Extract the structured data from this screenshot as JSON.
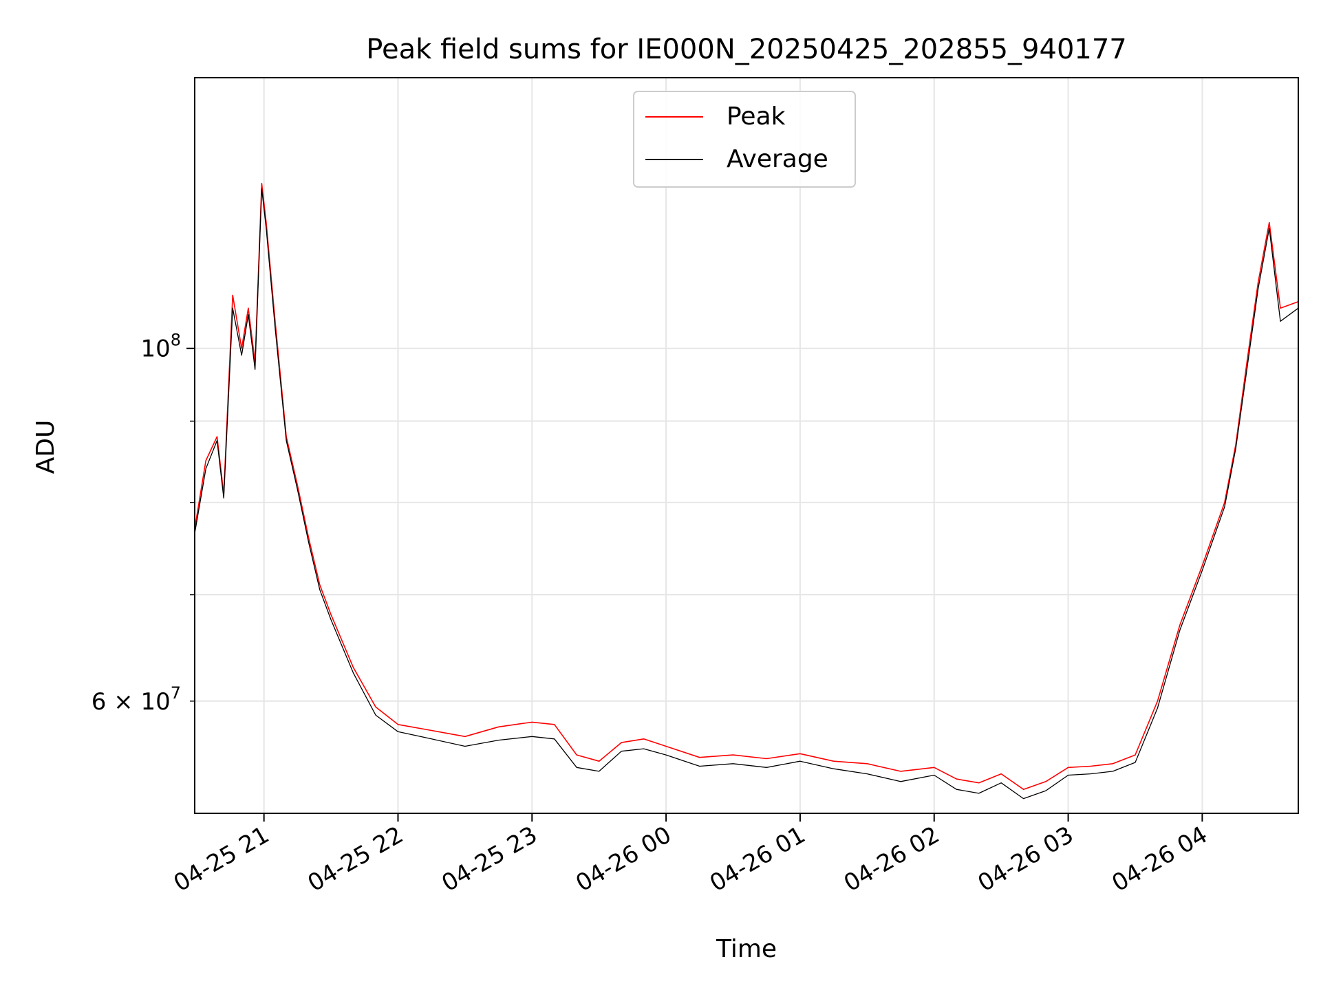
{
  "chart_data": {
    "type": "line",
    "title": "Peak field sums for IE000N_20250425_202855_940177",
    "xlabel": "Time",
    "ylabel": "ADU",
    "y_scale": "log",
    "ylim": [
      51000000,
      148000000
    ],
    "xlim": [
      "2025-04-25 20:29",
      "2025-04-26 04:43"
    ],
    "grid": true,
    "legend": "upper center",
    "x_ticks": [
      "04-25 21",
      "04-25 22",
      "04-25 23",
      "04-26 00",
      "04-26 01",
      "04-26 02",
      "04-26 03",
      "04-26 04"
    ],
    "y_major_ticks": [
      {
        "label": "10",
        "sup": "8",
        "value": 100000000
      }
    ],
    "y_label_ticks": [
      {
        "label": "6 × 10",
        "sup": "7",
        "value": 60000000
      }
    ],
    "y_minor_ticks": [
      60000000,
      70000000,
      80000000,
      90000000
    ],
    "series": [
      {
        "name": "Peak",
        "color": "#ff0000",
        "x": [
          "2025-04-25 20:29",
          "2025-04-25 20:34",
          "2025-04-25 20:39",
          "2025-04-25 20:42",
          "2025-04-25 20:46",
          "2025-04-25 20:50",
          "2025-04-25 20:53",
          "2025-04-25 20:56",
          "2025-04-25 20:59",
          "2025-04-25 21:01",
          "2025-04-25 21:05",
          "2025-04-25 21:10",
          "2025-04-25 21:15",
          "2025-04-25 21:20",
          "2025-04-25 21:25",
          "2025-04-25 21:30",
          "2025-04-25 21:40",
          "2025-04-25 21:50",
          "2025-04-25 22:00",
          "2025-04-25 22:15",
          "2025-04-25 22:30",
          "2025-04-25 22:45",
          "2025-04-25 23:00",
          "2025-04-25 23:10",
          "2025-04-25 23:20",
          "2025-04-25 23:30",
          "2025-04-25 23:40",
          "2025-04-25 23:50",
          "2025-04-26 00:00",
          "2025-04-26 00:15",
          "2025-04-26 00:30",
          "2025-04-26 00:45",
          "2025-04-26 01:00",
          "2025-04-26 01:15",
          "2025-04-26 01:30",
          "2025-04-26 01:45",
          "2025-04-26 02:00",
          "2025-04-26 02:10",
          "2025-04-26 02:20",
          "2025-04-26 02:30",
          "2025-04-26 02:40",
          "2025-04-26 02:50",
          "2025-04-26 03:00",
          "2025-04-26 03:10",
          "2025-04-26 03:20",
          "2025-04-26 03:30",
          "2025-04-26 03:40",
          "2025-04-26 03:50",
          "2025-04-26 04:00",
          "2025-04-26 04:10",
          "2025-04-26 04:15",
          "2025-04-26 04:20",
          "2025-04-26 04:25",
          "2025-04-26 04:30",
          "2025-04-26 04:35",
          "2025-04-26 04:43"
        ],
        "y": [
          77000000,
          85000000,
          88000000,
          81000000,
          108000000,
          100000000,
          106000000,
          98000000,
          127000000,
          120000000,
          104000000,
          88000000,
          82000000,
          76000000,
          71000000,
          68000000,
          63000000,
          59500000,
          58000000,
          57500000,
          57000000,
          57800000,
          58200000,
          58000000,
          55500000,
          55000000,
          56500000,
          56800000,
          56200000,
          55300000,
          55500000,
          55200000,
          55600000,
          55000000,
          54800000,
          54200000,
          54500000,
          53600000,
          53300000,
          54000000,
          52800000,
          53400000,
          54500000,
          54600000,
          54800000,
          55500000,
          60000000,
          67000000,
          73000000,
          80000000,
          87000000,
          98000000,
          110000000,
          120000000,
          106000000,
          107000000
        ]
      },
      {
        "name": "Average",
        "color": "#000000",
        "x": [
          "2025-04-25 20:29",
          "2025-04-25 20:34",
          "2025-04-25 20:39",
          "2025-04-25 20:42",
          "2025-04-25 20:46",
          "2025-04-25 20:50",
          "2025-04-25 20:53",
          "2025-04-25 20:56",
          "2025-04-25 20:59",
          "2025-04-25 21:01",
          "2025-04-25 21:05",
          "2025-04-25 21:10",
          "2025-04-25 21:15",
          "2025-04-25 21:20",
          "2025-04-25 21:25",
          "2025-04-25 21:30",
          "2025-04-25 21:40",
          "2025-04-25 21:50",
          "2025-04-25 22:00",
          "2025-04-25 22:15",
          "2025-04-25 22:30",
          "2025-04-25 22:45",
          "2025-04-25 23:00",
          "2025-04-25 23:10",
          "2025-04-25 23:20",
          "2025-04-25 23:30",
          "2025-04-25 23:40",
          "2025-04-25 23:50",
          "2025-04-26 00:00",
          "2025-04-26 00:15",
          "2025-04-26 00:30",
          "2025-04-26 00:45",
          "2025-04-26 01:00",
          "2025-04-26 01:15",
          "2025-04-26 01:30",
          "2025-04-26 01:45",
          "2025-04-26 02:00",
          "2025-04-26 02:10",
          "2025-04-26 02:20",
          "2025-04-26 02:30",
          "2025-04-26 02:40",
          "2025-04-26 02:50",
          "2025-04-26 03:00",
          "2025-04-26 03:10",
          "2025-04-26 03:20",
          "2025-04-26 03:30",
          "2025-04-26 03:40",
          "2025-04-26 03:50",
          "2025-04-26 04:00",
          "2025-04-26 04:10",
          "2025-04-26 04:15",
          "2025-04-26 04:20",
          "2025-04-26 04:25",
          "2025-04-26 04:30",
          "2025-04-26 04:35",
          "2025-04-26 04:43"
        ],
        "y": [
          76500000,
          84000000,
          87500000,
          80500000,
          106000000,
          99000000,
          105000000,
          97000000,
          126000000,
          119000000,
          103000000,
          87500000,
          81500000,
          75500000,
          70500000,
          67500000,
          62500000,
          58800000,
          57400000,
          56800000,
          56200000,
          56700000,
          57000000,
          56800000,
          54500000,
          54200000,
          55800000,
          56000000,
          55500000,
          54600000,
          54800000,
          54500000,
          55000000,
          54400000,
          54000000,
          53400000,
          53900000,
          52800000,
          52500000,
          53300000,
          52100000,
          52700000,
          53900000,
          54000000,
          54200000,
          54900000,
          59400000,
          66500000,
          72500000,
          79500000,
          86500000,
          97000000,
          109000000,
          119000000,
          104000000,
          106000000
        ]
      }
    ]
  }
}
